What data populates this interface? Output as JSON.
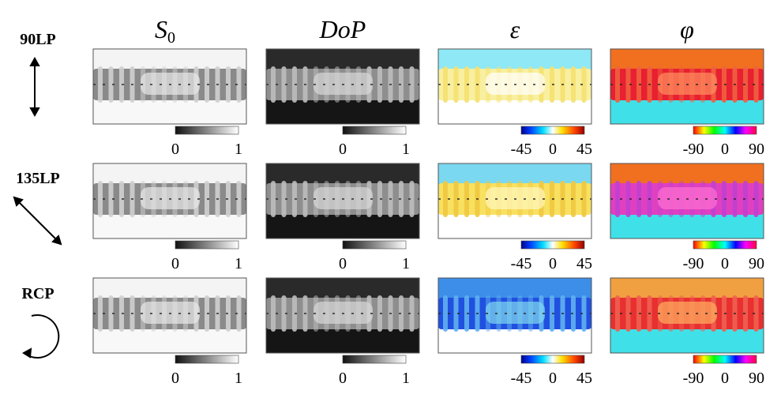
{
  "columns": [
    {
      "title": "S",
      "subscript": "0",
      "colorbar": {
        "ticks": [
          0,
          1
        ]
      }
    },
    {
      "title": "DoP",
      "colorbar": {
        "ticks": [
          0,
          1
        ]
      }
    },
    {
      "title": "ε",
      "colorbar": {
        "ticks": [
          -45,
          0,
          45
        ]
      }
    },
    {
      "title": "φ",
      "colorbar": {
        "ticks": [
          -90,
          0,
          90
        ]
      }
    }
  ],
  "rows": [
    {
      "label": "90LP"
    },
    {
      "label": "135LP"
    },
    {
      "label": "RCP"
    }
  ]
}
